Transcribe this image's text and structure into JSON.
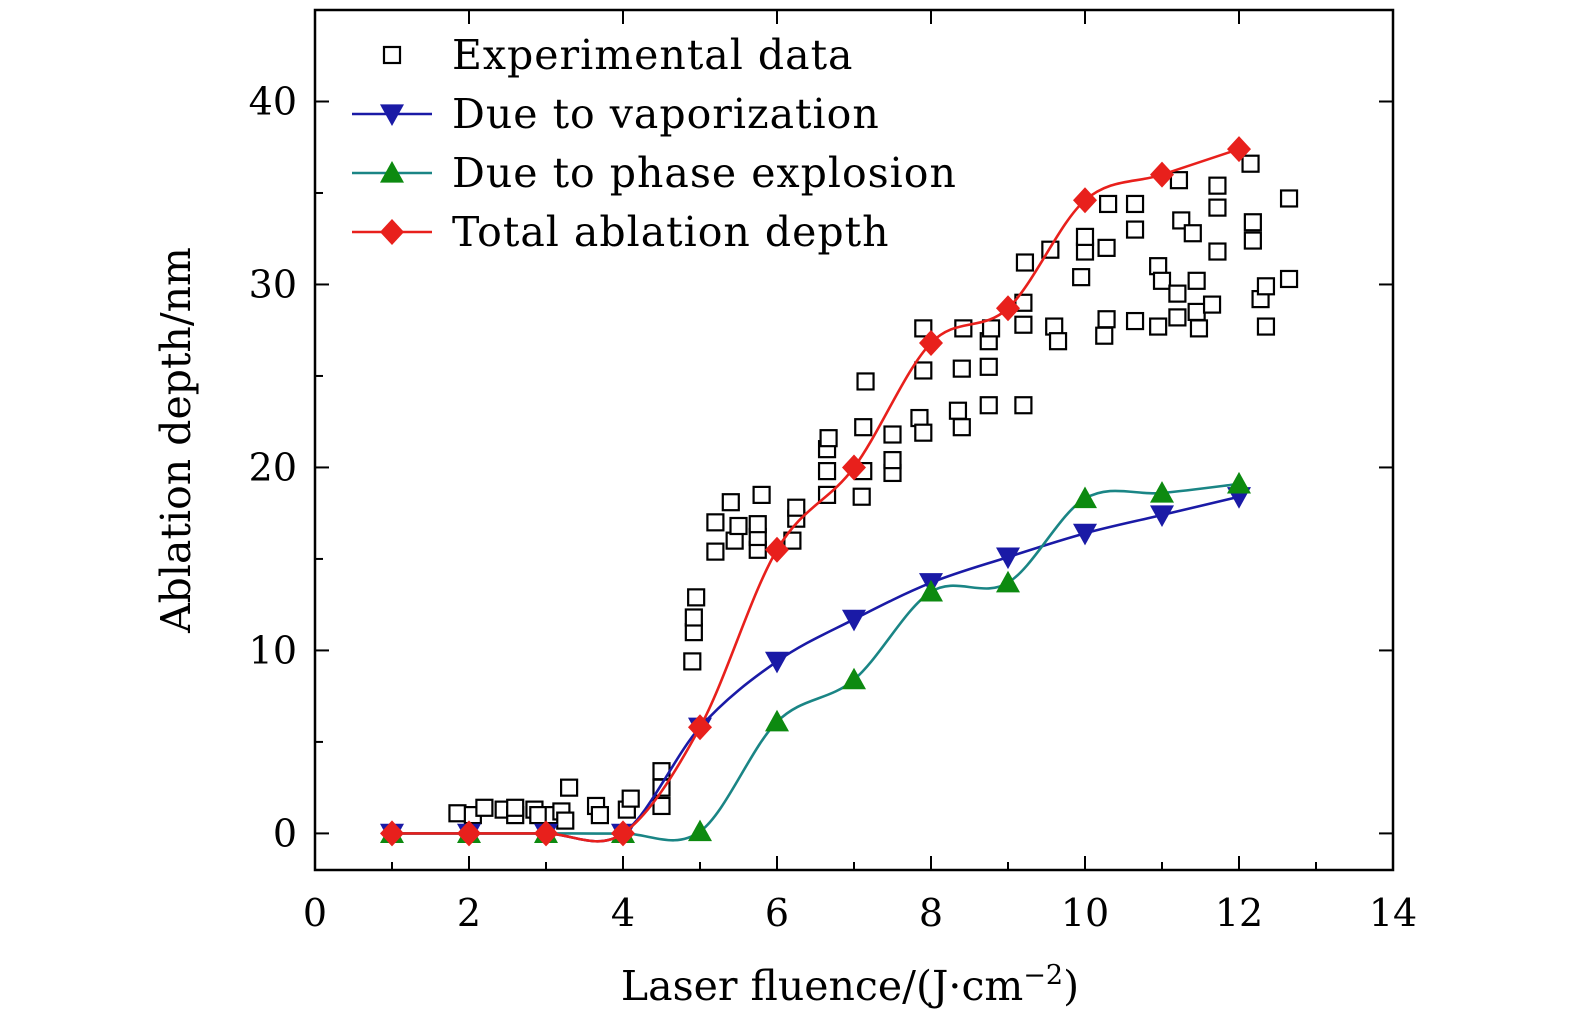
{
  "chart_data": {
    "type": "scatter",
    "title": "",
    "xlabel": "Laser fluence/(J·cm",
    "xlabel_sup": "−2",
    "xlabel_close": ")",
    "ylabel": "Ablation depth/nm",
    "xlim": [
      0,
      14
    ],
    "ylim": [
      -2,
      45
    ],
    "xticks": [
      0,
      2,
      4,
      6,
      8,
      10,
      12,
      14
    ],
    "xtick_labels": [
      "0",
      "2",
      "4",
      "6",
      "8",
      "10",
      "12",
      "14"
    ],
    "yticks": [
      0,
      10,
      20,
      30,
      40
    ],
    "ytick_labels": [
      "0",
      "10",
      "20",
      "30",
      "40"
    ],
    "legend_position": "top-left",
    "series": [
      {
        "name": "Experimental data",
        "kind": "scatter",
        "marker": "open-square",
        "color": "#000000",
        "points": [
          [
            1.85,
            1.1
          ],
          [
            2.05,
            1.0
          ],
          [
            2.2,
            1.4
          ],
          [
            2.45,
            1.3
          ],
          [
            2.6,
            1.0
          ],
          [
            2.6,
            1.4
          ],
          [
            2.85,
            1.3
          ],
          [
            2.9,
            1.0
          ],
          [
            3.1,
            1.0
          ],
          [
            3.2,
            1.2
          ],
          [
            3.25,
            0.7
          ],
          [
            3.3,
            2.5
          ],
          [
            3.65,
            1.5
          ],
          [
            3.7,
            1.0
          ],
          [
            4.05,
            1.3
          ],
          [
            4.1,
            1.9
          ],
          [
            4.5,
            1.5
          ],
          [
            4.5,
            2.5
          ],
          [
            4.5,
            3.4
          ],
          [
            4.9,
            9.4
          ],
          [
            4.92,
            11.0
          ],
          [
            4.92,
            11.8
          ],
          [
            4.95,
            12.9
          ],
          [
            5.2,
            15.4
          ],
          [
            5.2,
            17.0
          ],
          [
            5.4,
            18.1
          ],
          [
            5.45,
            16.0
          ],
          [
            5.5,
            16.8
          ],
          [
            5.75,
            15.5
          ],
          [
            5.75,
            16.2
          ],
          [
            5.75,
            16.9
          ],
          [
            5.8,
            18.5
          ],
          [
            6.2,
            16.0
          ],
          [
            6.25,
            17.2
          ],
          [
            6.25,
            17.8
          ],
          [
            6.65,
            18.5
          ],
          [
            6.65,
            19.8
          ],
          [
            6.65,
            21.0
          ],
          [
            6.67,
            21.6
          ],
          [
            7.1,
            18.4
          ],
          [
            7.12,
            19.8
          ],
          [
            7.12,
            22.2
          ],
          [
            7.15,
            24.7
          ],
          [
            7.5,
            19.7
          ],
          [
            7.5,
            20.4
          ],
          [
            7.5,
            21.8
          ],
          [
            7.85,
            22.7
          ],
          [
            7.9,
            21.9
          ],
          [
            7.9,
            25.3
          ],
          [
            7.9,
            27.6
          ],
          [
            8.35,
            23.1
          ],
          [
            8.4,
            22.2
          ],
          [
            8.4,
            25.4
          ],
          [
            8.42,
            27.6
          ],
          [
            8.75,
            23.4
          ],
          [
            8.75,
            25.5
          ],
          [
            8.75,
            26.9
          ],
          [
            8.78,
            27.6
          ],
          [
            9.2,
            23.4
          ],
          [
            9.2,
            27.8
          ],
          [
            9.2,
            29.0
          ],
          [
            9.22,
            31.2
          ],
          [
            9.55,
            31.9
          ],
          [
            9.6,
            27.7
          ],
          [
            9.65,
            26.9
          ],
          [
            9.95,
            30.4
          ],
          [
            10.0,
            31.8
          ],
          [
            10.0,
            32.6
          ],
          [
            10.25,
            27.2
          ],
          [
            10.28,
            28.1
          ],
          [
            10.28,
            32.0
          ],
          [
            10.3,
            34.4
          ],
          [
            10.65,
            34.4
          ],
          [
            10.65,
            33.0
          ],
          [
            10.65,
            28.0
          ],
          [
            10.95,
            27.7
          ],
          [
            10.95,
            31.0
          ],
          [
            11.0,
            30.2
          ],
          [
            11.2,
            29.5
          ],
          [
            11.2,
            28.2
          ],
          [
            11.22,
            35.7
          ],
          [
            11.25,
            33.5
          ],
          [
            11.4,
            32.8
          ],
          [
            11.45,
            30.2
          ],
          [
            11.45,
            28.5
          ],
          [
            11.48,
            27.6
          ],
          [
            11.65,
            28.9
          ],
          [
            11.72,
            31.8
          ],
          [
            11.72,
            34.2
          ],
          [
            11.72,
            35.4
          ],
          [
            12.15,
            36.6
          ],
          [
            12.18,
            33.4
          ],
          [
            12.18,
            32.4
          ],
          [
            12.28,
            29.2
          ],
          [
            12.35,
            29.9
          ],
          [
            12.35,
            27.7
          ],
          [
            12.65,
            30.3
          ],
          [
            12.65,
            34.7
          ]
        ]
      },
      {
        "name": "Due to vaporization",
        "kind": "line+marker",
        "marker": "triangle-down",
        "color": "#1a1aa6",
        "points": [
          [
            1,
            0
          ],
          [
            2,
            0
          ],
          [
            3,
            0
          ],
          [
            4,
            0
          ],
          [
            5,
            5.8
          ],
          [
            6,
            9.4
          ],
          [
            7,
            11.7
          ],
          [
            8,
            13.7
          ],
          [
            9,
            15.1
          ],
          [
            10,
            16.4
          ],
          [
            11,
            17.4
          ],
          [
            12,
            18.4
          ]
        ]
      },
      {
        "name": "Due to phase explosion",
        "kind": "line+marker",
        "marker": "triangle-up",
        "color": "#1a8585",
        "marker_color": "#0d8a10",
        "points": [
          [
            1,
            0
          ],
          [
            2,
            0
          ],
          [
            3,
            0
          ],
          [
            4,
            0
          ],
          [
            5,
            0.1
          ],
          [
            6,
            6.1
          ],
          [
            7,
            8.4
          ],
          [
            8,
            13.2
          ],
          [
            9,
            13.7
          ],
          [
            10,
            18.3
          ],
          [
            11,
            18.6
          ],
          [
            12,
            19.1
          ]
        ]
      },
      {
        "name": "Total ablation depth",
        "kind": "line+marker",
        "marker": "diamond",
        "color": "#e8201c",
        "points": [
          [
            1,
            0
          ],
          [
            2,
            0
          ],
          [
            3,
            0
          ],
          [
            4,
            0
          ],
          [
            5,
            5.8
          ],
          [
            6,
            15.5
          ],
          [
            7,
            20.0
          ],
          [
            8,
            26.8
          ],
          [
            9,
            28.7
          ],
          [
            10,
            34.6
          ],
          [
            11,
            36.0
          ],
          [
            12,
            37.4
          ]
        ]
      }
    ]
  }
}
